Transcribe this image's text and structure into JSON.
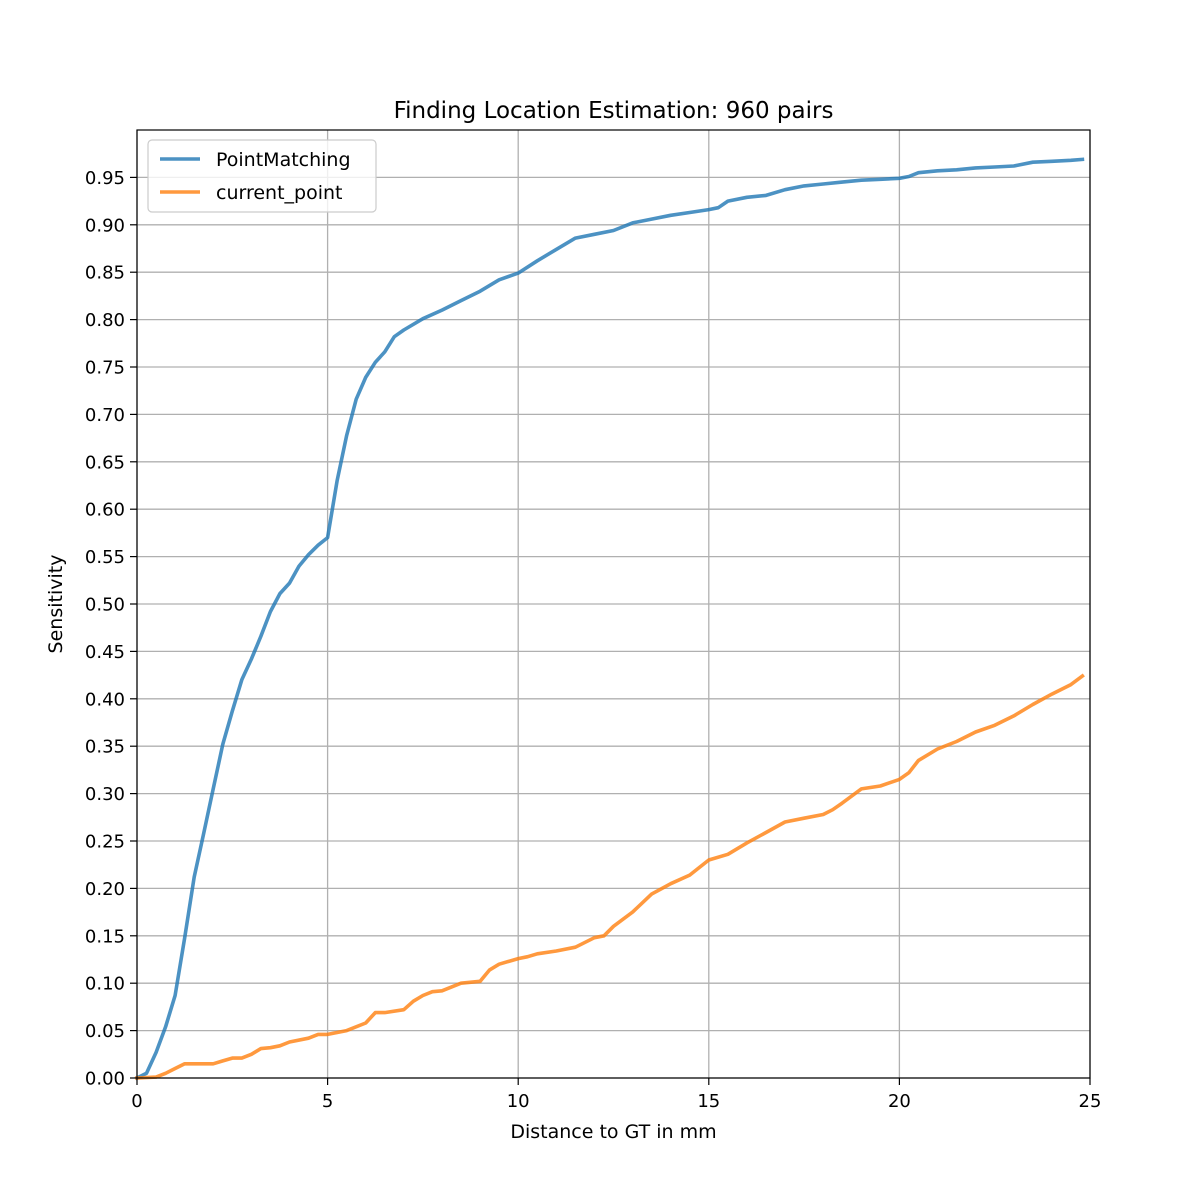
{
  "chart_data": {
    "type": "line",
    "title": "Finding Location Estimation: 960 pairs",
    "xlabel": "Distance to GT in mm",
    "ylabel": "Sensitivity",
    "xlim": [
      0,
      25
    ],
    "ylim": [
      0,
      1.0
    ],
    "xticks": [
      0,
      5,
      10,
      15,
      20,
      25
    ],
    "yticks": [
      0.0,
      0.05,
      0.1,
      0.15,
      0.2,
      0.25,
      0.3,
      0.35,
      0.4,
      0.45,
      0.5,
      0.55,
      0.6,
      0.65,
      0.7,
      0.75,
      0.8,
      0.85,
      0.9,
      0.95
    ],
    "grid": true,
    "legend_position": "top-left",
    "series": [
      {
        "name": "PointMatching",
        "color": "#1f77b4",
        "x": [
          0,
          0.25,
          0.5,
          0.75,
          1.0,
          1.25,
          1.5,
          1.75,
          2.0,
          2.25,
          2.5,
          2.75,
          3.0,
          3.25,
          3.5,
          3.75,
          4.0,
          4.25,
          4.5,
          4.75,
          5.0,
          5.25,
          5.5,
          5.75,
          6.0,
          6.25,
          6.5,
          6.75,
          7.0,
          7.5,
          8.0,
          8.5,
          9.0,
          9.5,
          10.0,
          10.5,
          11.0,
          11.5,
          12.0,
          12.5,
          13.0,
          13.5,
          14.0,
          14.5,
          15.0,
          15.25,
          15.5,
          16.0,
          16.5,
          17.0,
          17.5,
          18.0,
          18.5,
          19.0,
          19.5,
          20.0,
          20.25,
          20.5,
          21.0,
          21.5,
          22.0,
          22.5,
          23.0,
          23.5,
          24.0,
          24.5,
          24.8
        ],
        "y": [
          0.0,
          0.005,
          0.027,
          0.054,
          0.087,
          0.148,
          0.212,
          0.258,
          0.305,
          0.352,
          0.387,
          0.42,
          0.442,
          0.466,
          0.492,
          0.511,
          0.522,
          0.54,
          0.552,
          0.562,
          0.57,
          0.63,
          0.678,
          0.716,
          0.739,
          0.755,
          0.766,
          0.782,
          0.789,
          0.801,
          0.81,
          0.82,
          0.83,
          0.842,
          0.849,
          0.862,
          0.874,
          0.886,
          0.89,
          0.894,
          0.902,
          0.906,
          0.91,
          0.913,
          0.916,
          0.918,
          0.925,
          0.929,
          0.931,
          0.937,
          0.941,
          0.943,
          0.945,
          0.947,
          0.948,
          0.949,
          0.951,
          0.955,
          0.957,
          0.958,
          0.96,
          0.961,
          0.962,
          0.966,
          0.967,
          0.968,
          0.969
        ]
      },
      {
        "name": "current_point",
        "color": "#ff7f0e",
        "x": [
          0,
          0.5,
          0.75,
          1.0,
          1.25,
          1.5,
          2.0,
          2.25,
          2.5,
          2.75,
          3.0,
          3.25,
          3.5,
          3.75,
          4.0,
          4.5,
          4.75,
          5.0,
          5.5,
          6.0,
          6.25,
          6.5,
          7.0,
          7.25,
          7.5,
          7.75,
          8.0,
          8.5,
          9.0,
          9.25,
          9.5,
          10.0,
          10.25,
          10.5,
          11.0,
          11.5,
          12.0,
          12.25,
          12.5,
          13.0,
          13.5,
          14.0,
          14.5,
          14.75,
          15.0,
          15.5,
          16.0,
          16.5,
          17.0,
          17.5,
          18.0,
          18.25,
          18.5,
          19.0,
          19.5,
          20.0,
          20.25,
          20.5,
          21.0,
          21.5,
          22.0,
          22.5,
          23.0,
          23.5,
          24.0,
          24.5,
          24.8
        ],
        "y": [
          0.0,
          0.001,
          0.005,
          0.01,
          0.015,
          0.015,
          0.015,
          0.018,
          0.021,
          0.021,
          0.025,
          0.031,
          0.032,
          0.034,
          0.038,
          0.042,
          0.046,
          0.046,
          0.05,
          0.058,
          0.069,
          0.069,
          0.072,
          0.081,
          0.087,
          0.091,
          0.092,
          0.1,
          0.102,
          0.114,
          0.12,
          0.126,
          0.128,
          0.131,
          0.134,
          0.138,
          0.148,
          0.15,
          0.16,
          0.175,
          0.194,
          0.205,
          0.214,
          0.222,
          0.23,
          0.236,
          0.248,
          0.259,
          0.27,
          0.274,
          0.278,
          0.283,
          0.29,
          0.305,
          0.308,
          0.315,
          0.322,
          0.335,
          0.347,
          0.355,
          0.365,
          0.372,
          0.382,
          0.394,
          0.405,
          0.415,
          0.424
        ]
      }
    ]
  }
}
